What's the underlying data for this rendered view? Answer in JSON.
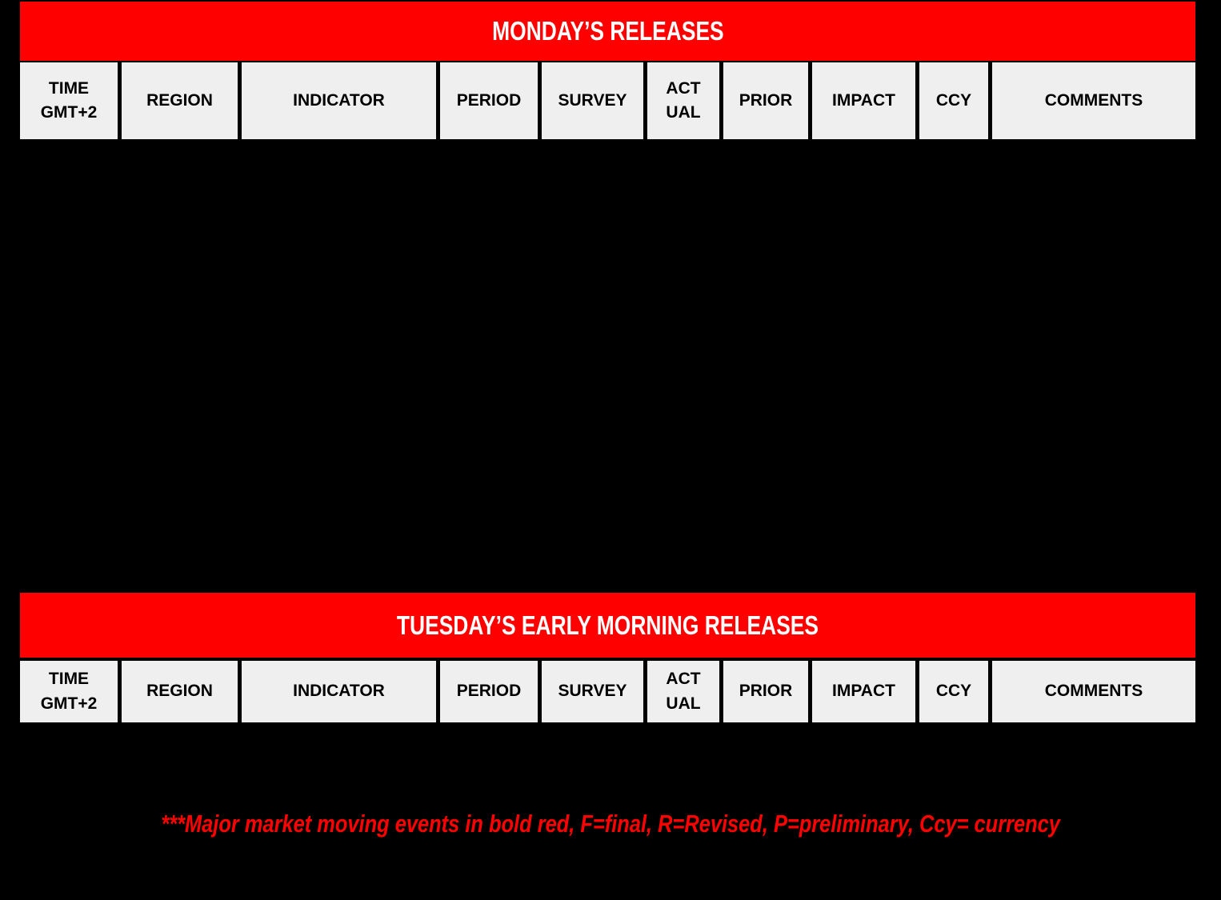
{
  "page": {
    "background": "#000000"
  },
  "colors": {
    "accent_red": "#FF0000",
    "title_text": "#FFFFFF",
    "header_cell_bg": "#EFEFEF",
    "header_cell_text": "#000000"
  },
  "tables": {
    "columns": [
      "TIME\nGMT+2",
      "REGION",
      "INDICATOR",
      "PERIOD",
      "SURVEY",
      "ACT\nUAL",
      "PRIOR",
      "IMPACT",
      "CCY",
      "COMMENTS"
    ],
    "monday": {
      "title": "MONDAY’S RELEASES"
    },
    "tuesday": {
      "title": "TUESDAY’S EARLY MORNING RELEASES"
    }
  },
  "footnote": "***Major market moving events in bold red, F=final, R=Revised, P=preliminary, Ccy= currency"
}
